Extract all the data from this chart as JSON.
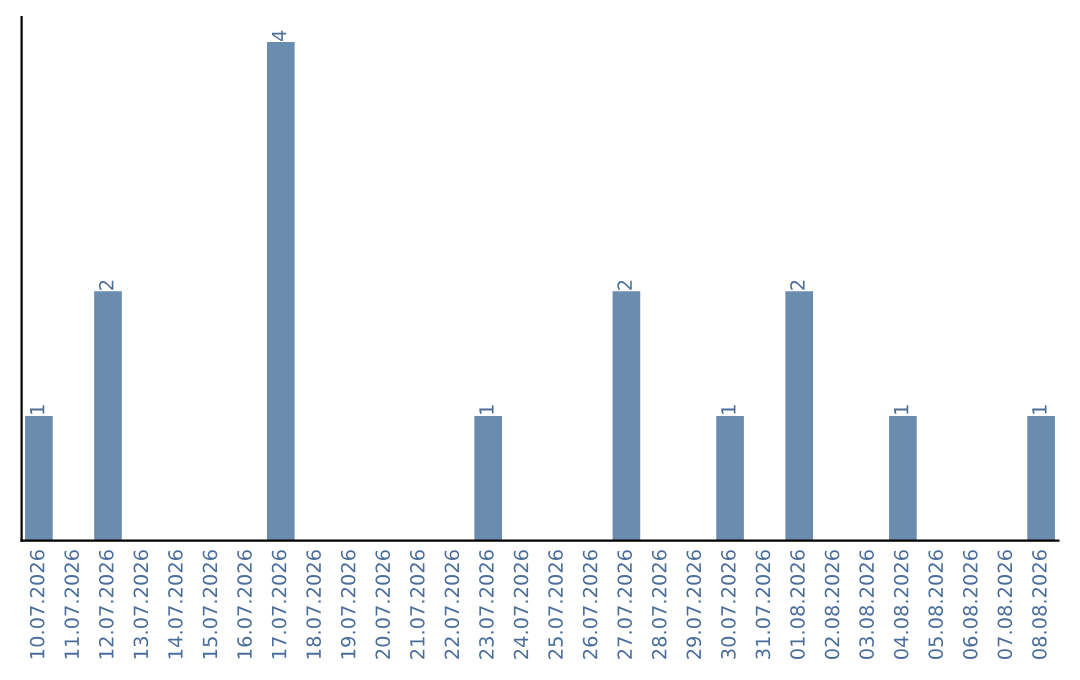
{
  "chart_data": {
    "type": "bar",
    "categories": [
      "10.07.2026",
      "11.07.2026",
      "12.07.2026",
      "13.07.2026",
      "14.07.2026",
      "15.07.2026",
      "16.07.2026",
      "17.07.2026",
      "18.07.2026",
      "19.07.2026",
      "20.07.2026",
      "21.07.2026",
      "22.07.2026",
      "23.07.2026",
      "24.07.2026",
      "25.07.2026",
      "26.07.2026",
      "27.07.2026",
      "28.07.2026",
      "29.07.2026",
      "30.07.2026",
      "31.07.2026",
      "01.08.2026",
      "02.08.2026",
      "03.08.2026",
      "04.08.2026",
      "05.08.2026",
      "06.08.2026",
      "07.08.2026",
      "08.08.2026"
    ],
    "values": [
      1,
      0,
      2,
      0,
      0,
      0,
      0,
      4,
      0,
      0,
      0,
      0,
      0,
      1,
      0,
      0,
      0,
      2,
      0,
      0,
      1,
      0,
      2,
      0,
      0,
      1,
      0,
      0,
      0,
      1
    ],
    "value_labels": [
      "1",
      null,
      "2",
      null,
      null,
      null,
      null,
      "4",
      null,
      null,
      null,
      null,
      null,
      "1",
      null,
      null,
      null,
      "2",
      null,
      null,
      "1",
      null,
      "2",
      null,
      null,
      "1",
      null,
      null,
      null,
      "1"
    ],
    "color": "#6a8caf",
    "grid": false,
    "legend": false
  }
}
